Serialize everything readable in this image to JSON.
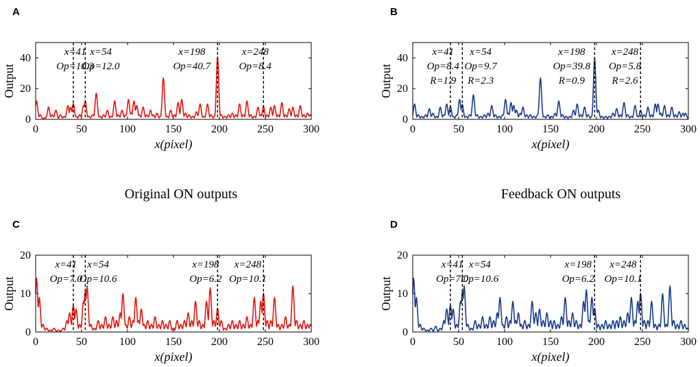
{
  "figure": {
    "row_titles": {
      "original": "Original ON outputs",
      "feedback": "Feedback ON outputs"
    }
  },
  "chart_data": [
    {
      "panel": "A",
      "type": "line",
      "color": "#e3140e",
      "xlabel": "x(pixel)",
      "ylabel": "Output",
      "xlim": [
        0,
        300
      ],
      "ylim": [
        0,
        50
      ],
      "xticks": [
        0,
        50,
        100,
        150,
        200,
        250,
        300
      ],
      "yticks": [
        0,
        20,
        40
      ],
      "markers": [
        41,
        54,
        198,
        248
      ],
      "annotations": [
        {
          "lines": [
            "x=41",
            "Op=10.3"
          ],
          "x": 43
        },
        {
          "lines": [
            "x=54",
            "Op=12.0"
          ],
          "x": 71
        },
        {
          "lines": [
            "x=198",
            "Op=40.7"
          ],
          "x": 170
        },
        {
          "lines": [
            "x=248",
            "Op=8.4"
          ],
          "x": 239
        }
      ],
      "peaks": [
        [
          1,
          12
        ],
        [
          5,
          3
        ],
        [
          10,
          1
        ],
        [
          14,
          8
        ],
        [
          18,
          3
        ],
        [
          22,
          6
        ],
        [
          27,
          3
        ],
        [
          31,
          2
        ],
        [
          35,
          9
        ],
        [
          38,
          8
        ],
        [
          41,
          10.3
        ],
        [
          44,
          2
        ],
        [
          48,
          3
        ],
        [
          52,
          9
        ],
        [
          54,
          12
        ],
        [
          58,
          2
        ],
        [
          62,
          3
        ],
        [
          66,
          17
        ],
        [
          70,
          2
        ],
        [
          74,
          3
        ],
        [
          78,
          6
        ],
        [
          82,
          2
        ],
        [
          86,
          12
        ],
        [
          90,
          3
        ],
        [
          94,
          6
        ],
        [
          98,
          3
        ],
        [
          101,
          13
        ],
        [
          104,
          4
        ],
        [
          107,
          12
        ],
        [
          110,
          9
        ],
        [
          113,
          3
        ],
        [
          117,
          8
        ],
        [
          121,
          3
        ],
        [
          125,
          6
        ],
        [
          128,
          3
        ],
        [
          132,
          4
        ],
        [
          136,
          2
        ],
        [
          139,
          27
        ],
        [
          143,
          2
        ],
        [
          147,
          6
        ],
        [
          151,
          3
        ],
        [
          155,
          11
        ],
        [
          159,
          13
        ],
        [
          163,
          4
        ],
        [
          167,
          3
        ],
        [
          171,
          2
        ],
        [
          175,
          5
        ],
        [
          179,
          10
        ],
        [
          183,
          2
        ],
        [
          187,
          10
        ],
        [
          191,
          3
        ],
        [
          195,
          2
        ],
        [
          198,
          40.7
        ],
        [
          202,
          3
        ],
        [
          206,
          2
        ],
        [
          210,
          3
        ],
        [
          214,
          4
        ],
        [
          218,
          3
        ],
        [
          222,
          10
        ],
        [
          226,
          3
        ],
        [
          230,
          12
        ],
        [
          234,
          3
        ],
        [
          238,
          2
        ],
        [
          242,
          8
        ],
        [
          245,
          3
        ],
        [
          248,
          8.4
        ],
        [
          252,
          3
        ],
        [
          256,
          8
        ],
        [
          260,
          9
        ],
        [
          264,
          3
        ],
        [
          268,
          11
        ],
        [
          272,
          3
        ],
        [
          276,
          7
        ],
        [
          280,
          8
        ],
        [
          284,
          3
        ],
        [
          288,
          9
        ],
        [
          292,
          3
        ],
        [
          296,
          4
        ],
        [
          299,
          3
        ]
      ]
    },
    {
      "panel": "B",
      "type": "line",
      "color": "#173a8c",
      "xlabel": "x(pixel)",
      "ylabel": "Output",
      "xlim": [
        0,
        300
      ],
      "ylim": [
        0,
        50
      ],
      "xticks": [
        0,
        50,
        100,
        150,
        200,
        250,
        300
      ],
      "yticks": [
        0,
        20,
        40
      ],
      "markers": [
        41,
        54,
        198,
        248
      ],
      "annotations": [
        {
          "lines": [
            "x=41",
            "Op=8.4",
            "R=1.9"
          ],
          "x": 33
        },
        {
          "lines": [
            "x=54",
            "Op=9.7",
            "R=2.3"
          ],
          "x": 74
        },
        {
          "lines": [
            "x=198",
            "Op=39.8",
            "R=0.9"
          ],
          "x": 173
        },
        {
          "lines": [
            "x=248",
            "Op=5.8",
            "R=2.6"
          ],
          "x": 231
        }
      ],
      "peaks": [
        [
          2,
          10
        ],
        [
          6,
          3
        ],
        [
          10,
          2
        ],
        [
          14,
          3
        ],
        [
          18,
          7
        ],
        [
          22,
          4
        ],
        [
          26,
          2
        ],
        [
          30,
          8
        ],
        [
          34,
          3
        ],
        [
          37,
          10
        ],
        [
          41,
          8.4
        ],
        [
          44,
          2
        ],
        [
          48,
          3
        ],
        [
          51,
          13
        ],
        [
          54,
          9.7
        ],
        [
          58,
          2
        ],
        [
          62,
          3
        ],
        [
          66,
          16
        ],
        [
          70,
          3
        ],
        [
          74,
          2
        ],
        [
          78,
          3
        ],
        [
          82,
          4
        ],
        [
          86,
          9
        ],
        [
          90,
          3
        ],
        [
          94,
          2
        ],
        [
          98,
          3
        ],
        [
          101,
          13
        ],
        [
          104,
          4
        ],
        [
          107,
          11
        ],
        [
          110,
          9
        ],
        [
          113,
          6
        ],
        [
          117,
          4
        ],
        [
          120,
          8
        ],
        [
          124,
          3
        ],
        [
          128,
          3
        ],
        [
          132,
          2
        ],
        [
          136,
          3
        ],
        [
          139,
          27
        ],
        [
          143,
          2
        ],
        [
          147,
          3
        ],
        [
          151,
          2
        ],
        [
          155,
          4
        ],
        [
          159,
          12
        ],
        [
          163,
          3
        ],
        [
          167,
          2
        ],
        [
          171,
          2
        ],
        [
          175,
          6
        ],
        [
          179,
          10
        ],
        [
          183,
          3
        ],
        [
          187,
          8
        ],
        [
          191,
          3
        ],
        [
          195,
          2
        ],
        [
          198,
          39.8
        ],
        [
          202,
          6
        ],
        [
          206,
          2
        ],
        [
          210,
          2
        ],
        [
          214,
          2
        ],
        [
          218,
          4
        ],
        [
          222,
          7
        ],
        [
          226,
          3
        ],
        [
          230,
          11
        ],
        [
          234,
          3
        ],
        [
          238,
          2
        ],
        [
          242,
          9
        ],
        [
          245,
          2
        ],
        [
          248,
          5.8
        ],
        [
          252,
          3
        ],
        [
          256,
          8
        ],
        [
          260,
          3
        ],
        [
          264,
          10
        ],
        [
          267,
          10
        ],
        [
          270,
          4
        ],
        [
          274,
          9
        ],
        [
          278,
          3
        ],
        [
          282,
          8
        ],
        [
          286,
          3
        ],
        [
          290,
          5
        ],
        [
          294,
          4
        ],
        [
          297,
          4
        ]
      ]
    },
    {
      "panel": "C",
      "type": "line",
      "color": "#e3140e",
      "xlabel": "x(pixel)",
      "ylabel": "Output",
      "xlim": [
        0,
        300
      ],
      "ylim": [
        0,
        20
      ],
      "xticks": [
        0,
        50,
        100,
        150,
        200,
        250,
        300
      ],
      "yticks": [
        0,
        10,
        20
      ],
      "markers": [
        41,
        54,
        198,
        248
      ],
      "annotations": [
        {
          "lines": [
            "x=41",
            "Op=7.0"
          ],
          "x": 33
        },
        {
          "lines": [
            "x=54",
            "Op=10.6"
          ],
          "x": 68
        },
        {
          "lines": [
            "x=198",
            "Op=6.2"
          ],
          "x": 185
        },
        {
          "lines": [
            "x=248",
            "Op=10.1"
          ],
          "x": 231
        }
      ],
      "peaks": [
        [
          1,
          14
        ],
        [
          4,
          9
        ],
        [
          8,
          2
        ],
        [
          12,
          1
        ],
        [
          16,
          0.5
        ],
        [
          20,
          1
        ],
        [
          25,
          0.5
        ],
        [
          30,
          1
        ],
        [
          34,
          3
        ],
        [
          37,
          5
        ],
        [
          41,
          7
        ],
        [
          44,
          6
        ],
        [
          48,
          2
        ],
        [
          52,
          8
        ],
        [
          54,
          10.6
        ],
        [
          56,
          12
        ],
        [
          60,
          2
        ],
        [
          64,
          1
        ],
        [
          68,
          3
        ],
        [
          72,
          2
        ],
        [
          76,
          4
        ],
        [
          80,
          2
        ],
        [
          84,
          4
        ],
        [
          88,
          3
        ],
        [
          92,
          5
        ],
        [
          95,
          10
        ],
        [
          98,
          2
        ],
        [
          102,
          4
        ],
        [
          106,
          3
        ],
        [
          109,
          9
        ],
        [
          112,
          3
        ],
        [
          115,
          6
        ],
        [
          118,
          2
        ],
        [
          122,
          3
        ],
        [
          126,
          2
        ],
        [
          130,
          4
        ],
        [
          134,
          2
        ],
        [
          138,
          3
        ],
        [
          142,
          2
        ],
        [
          146,
          3
        ],
        [
          150,
          1
        ],
        [
          154,
          3
        ],
        [
          158,
          2
        ],
        [
          162,
          3
        ],
        [
          166,
          5
        ],
        [
          170,
          3
        ],
        [
          174,
          8
        ],
        [
          178,
          3
        ],
        [
          182,
          2
        ],
        [
          186,
          8
        ],
        [
          190,
          11.5
        ],
        [
          194,
          3
        ],
        [
          198,
          6.2
        ],
        [
          202,
          3
        ],
        [
          206,
          1
        ],
        [
          210,
          2
        ],
        [
          214,
          3
        ],
        [
          218,
          2
        ],
        [
          222,
          3
        ],
        [
          226,
          2
        ],
        [
          230,
          4
        ],
        [
          234,
          2
        ],
        [
          238,
          9
        ],
        [
          242,
          3
        ],
        [
          245,
          8
        ],
        [
          248,
          10.1
        ],
        [
          252,
          3
        ],
        [
          256,
          3
        ],
        [
          260,
          9
        ],
        [
          264,
          2
        ],
        [
          268,
          2
        ],
        [
          272,
          4
        ],
        [
          276,
          2
        ],
        [
          280,
          12
        ],
        [
          284,
          3
        ],
        [
          288,
          2
        ],
        [
          292,
          3
        ],
        [
          296,
          2
        ],
        [
          299,
          2
        ]
      ]
    },
    {
      "panel": "D",
      "type": "line",
      "color": "#173a8c",
      "xlabel": "x(pixel)",
      "ylabel": "Output",
      "xlim": [
        0,
        300
      ],
      "ylim": [
        0,
        20
      ],
      "xticks": [
        0,
        50,
        100,
        150,
        200,
        250,
        300
      ],
      "yticks": [
        0,
        10,
        20
      ],
      "markers": [
        41,
        54,
        198,
        248
      ],
      "annotations": [
        {
          "lines": [
            "x=41",
            "Op=7.0"
          ],
          "x": 43
        },
        {
          "lines": [
            "x=54",
            "Op=10.6"
          ],
          "x": 73
        },
        {
          "lines": [
            "x=198",
            "Op=6.2"
          ],
          "x": 180
        },
        {
          "lines": [
            "x=248",
            "Op=10.1"
          ],
          "x": 229
        }
      ],
      "peaks": [
        [
          1,
          14
        ],
        [
          4,
          9
        ],
        [
          8,
          2
        ],
        [
          12,
          1
        ],
        [
          16,
          0.5
        ],
        [
          20,
          1
        ],
        [
          25,
          1.5
        ],
        [
          30,
          1
        ],
        [
          34,
          3
        ],
        [
          37,
          6
        ],
        [
          41,
          7
        ],
        [
          44,
          6
        ],
        [
          48,
          2
        ],
        [
          52,
          8
        ],
        [
          54,
          10.6
        ],
        [
          56,
          12
        ],
        [
          60,
          2
        ],
        [
          64,
          1
        ],
        [
          68,
          3
        ],
        [
          72,
          2
        ],
        [
          76,
          4
        ],
        [
          80,
          2
        ],
        [
          84,
          4
        ],
        [
          88,
          3
        ],
        [
          92,
          5
        ],
        [
          95,
          9
        ],
        [
          98,
          2
        ],
        [
          102,
          4
        ],
        [
          106,
          3
        ],
        [
          109,
          8
        ],
        [
          112,
          3
        ],
        [
          115,
          5
        ],
        [
          118,
          2
        ],
        [
          122,
          3
        ],
        [
          126,
          2
        ],
        [
          130,
          8
        ],
        [
          134,
          5
        ],
        [
          138,
          6
        ],
        [
          142,
          3
        ],
        [
          146,
          5
        ],
        [
          150,
          3
        ],
        [
          154,
          3
        ],
        [
          158,
          2
        ],
        [
          162,
          4
        ],
        [
          166,
          9
        ],
        [
          170,
          3
        ],
        [
          174,
          5
        ],
        [
          178,
          3
        ],
        [
          182,
          2
        ],
        [
          186,
          8
        ],
        [
          189,
          11
        ],
        [
          192,
          3
        ],
        [
          195,
          9
        ],
        [
          198,
          6.2
        ],
        [
          202,
          2
        ],
        [
          206,
          2
        ],
        [
          210,
          3
        ],
        [
          214,
          2
        ],
        [
          218,
          3
        ],
        [
          222,
          3
        ],
        [
          226,
          4
        ],
        [
          230,
          3
        ],
        [
          234,
          5
        ],
        [
          238,
          9
        ],
        [
          242,
          3
        ],
        [
          245,
          8
        ],
        [
          248,
          10.1
        ],
        [
          252,
          3
        ],
        [
          256,
          3
        ],
        [
          260,
          8
        ],
        [
          264,
          2
        ],
        [
          268,
          2
        ],
        [
          272,
          10
        ],
        [
          276,
          2
        ],
        [
          280,
          12
        ],
        [
          284,
          3
        ],
        [
          288,
          2
        ],
        [
          292,
          3
        ],
        [
          296,
          2
        ],
        [
          299,
          1
        ]
      ]
    }
  ]
}
